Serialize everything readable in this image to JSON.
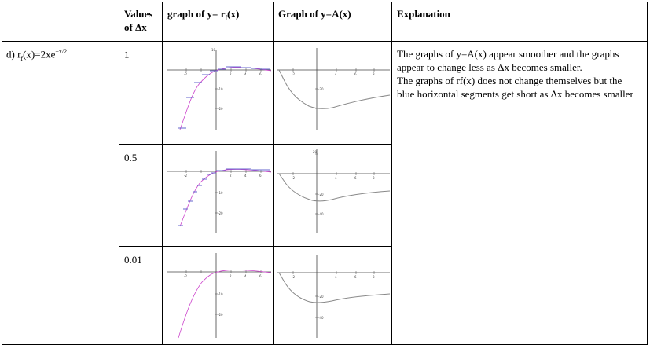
{
  "header": {
    "col_dx_line1": "Values",
    "col_dx_line2": "of Δx",
    "col_rf_prefix": "graph of y= r",
    "col_rf_sub": "f",
    "col_rf_suffix": "(x)",
    "col_a": "Graph of y=A(x)",
    "col_expl": "Explanation"
  },
  "row": {
    "label_prefix": "d) r",
    "label_sub": "f",
    "label_mid": "(x)=2xe",
    "label_sup": "−x/2"
  },
  "deltas": [
    "1",
    "0.5",
    "0.01"
  ],
  "explanation": {
    "p1": "The graphs of y=A(x) appear smoother and the graphs appear to change less as Δx becomes smaller.",
    "p2": "The graphs of rf(x) does not change themselves but the blue horizontal segments get short as Δx becomes smaller"
  },
  "graphs": {
    "rf_tick_labels_r1": [
      "10",
      "-2",
      "2",
      "4",
      "6",
      "8",
      "-10",
      "-20"
    ],
    "rf_tick_labels_r2": [
      "-2",
      "2",
      "4",
      "6",
      "8",
      "-10",
      "-20"
    ],
    "rf_tick_labels_r3": [
      "-2",
      "2",
      "4",
      "6",
      "8",
      "-10",
      "-20"
    ],
    "a_tick_labels_r1": [
      "-2",
      "2",
      "4",
      "6",
      "8",
      "-20"
    ],
    "a_tick_labels_r2": [
      "20",
      "-2",
      "2",
      "4",
      "6",
      "8",
      "-20",
      "-40"
    ],
    "a_tick_labels_r3": [
      "-2",
      "2",
      "4",
      "6",
      "8",
      "-20",
      "-40"
    ]
  },
  "colors": {
    "function": "#cc44cc",
    "segments": "#6666cc",
    "area": "#888888"
  }
}
